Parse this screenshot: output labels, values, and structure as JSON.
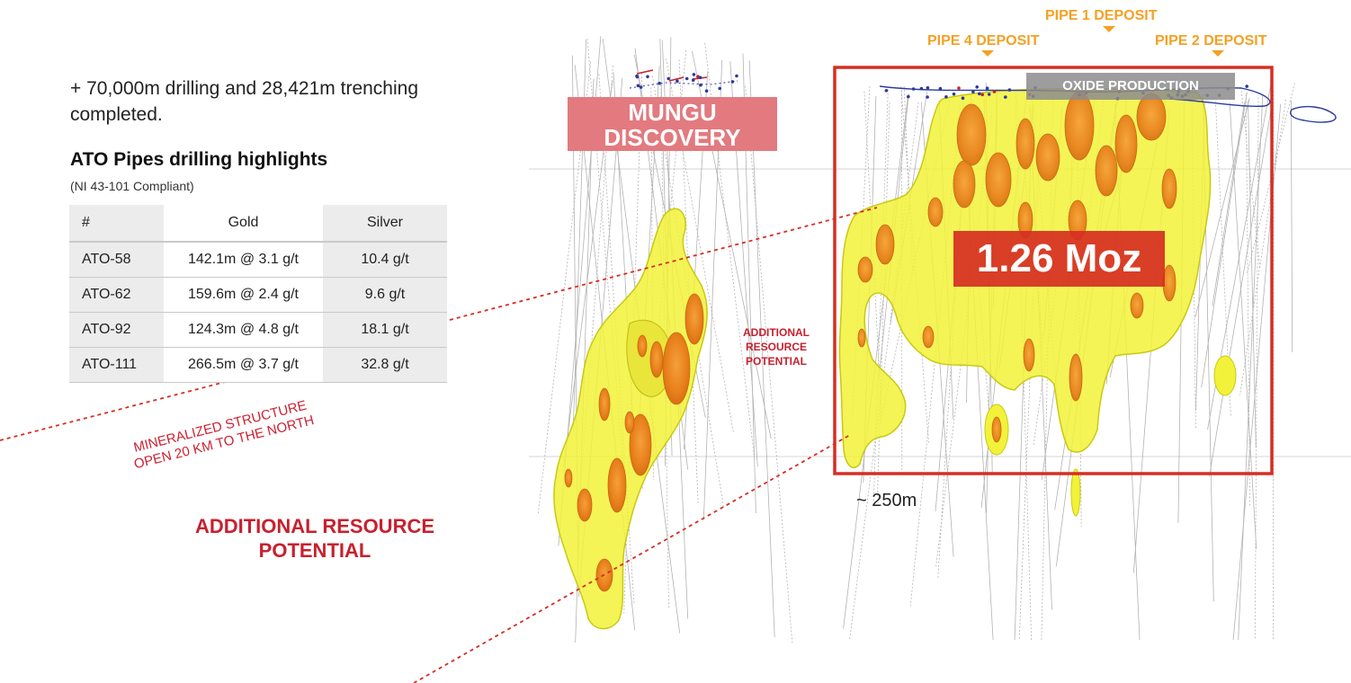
{
  "intro_text": "+ 70,000m drilling and 28,421m trenching completed.",
  "highlights": {
    "title": "ATO Pipes drilling highlights",
    "subtitle": "(NI 43-101 Compliant)",
    "headers": [
      "#",
      "Gold",
      "Silver"
    ],
    "rows": [
      {
        "id": "ATO-58",
        "gold": "142.1m @ 3.1 g/t",
        "silver": "10.4 g/t"
      },
      {
        "id": "ATO-62",
        "gold": "159.6m @ 2.4 g/t",
        "silver": "9.6 g/t"
      },
      {
        "id": "ATO-92",
        "gold": "124.3m @ 4.8 g/t",
        "silver": "18.1 g/t"
      },
      {
        "id": "ATO-111",
        "gold": "266.5m @ 3.7 g/t",
        "silver": "32.8 g/t"
      }
    ]
  },
  "labels": {
    "mineralized_line1": "MINERALIZED STRUCTURE",
    "mineralized_line2": "OPEN 20 KM  TO THE NORTH",
    "additional_left": "ADDITIONAL RESOURCE POTENTIAL",
    "additional_mid": "ADDITIONAL RESOURCE POTENTIAL",
    "mungu": "MUNGU DISCOVERY",
    "oxide": "OXIDE PRODUCTION",
    "resource": "1.26 Moz",
    "pipe1": "PIPE 1 DEPOSIT",
    "pipe2": "PIPE 2 DEPOSIT",
    "pipe4": "PIPE 4 DEPOSIT",
    "scale": "~ 250m"
  },
  "colors": {
    "accent_red": "#d62e22",
    "pipe_orange": "#f4a125",
    "ore_yellow": "#f2f23a",
    "ore_orange": "#f08a1a"
  }
}
